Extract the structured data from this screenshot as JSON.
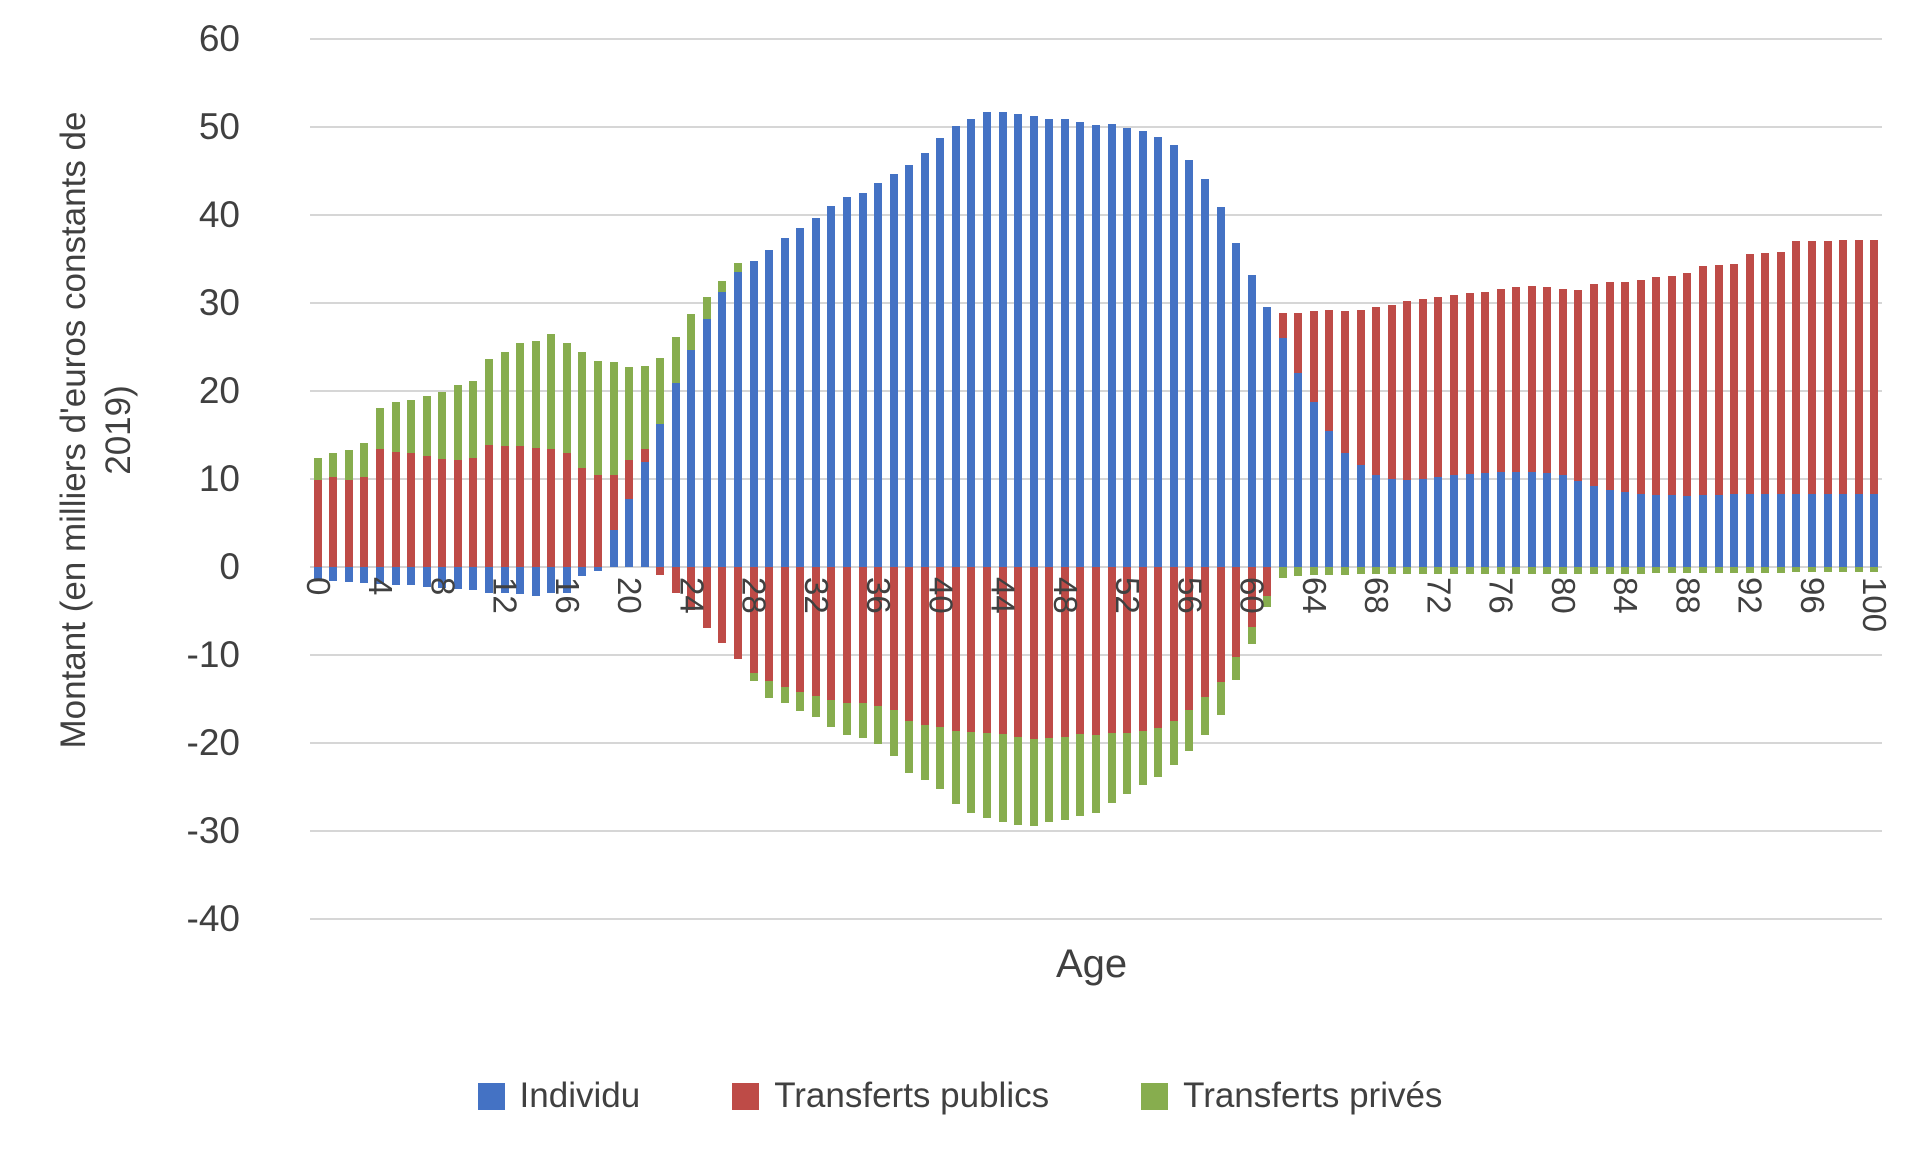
{
  "chart_data": {
    "type": "bar",
    "stacked": true,
    "orientation": "vertical",
    "xlabel": "Age",
    "ylabel": "Montant (en milliers d'euros constants de 2019)",
    "x_range": [
      0,
      100
    ],
    "x_tick_step": 4,
    "x_tick_labels": [
      "0",
      "4",
      "8",
      "12",
      "16",
      "20",
      "24",
      "28",
      "32",
      "36",
      "40",
      "44",
      "48",
      "52",
      "56",
      "60",
      "64",
      "68",
      "72",
      "76",
      "80",
      "84",
      "88",
      "92",
      "96",
      "100"
    ],
    "ylim": [
      -40,
      60
    ],
    "y_ticks": [
      60,
      50,
      40,
      30,
      20,
      10,
      0,
      -10,
      -20,
      -30,
      -40
    ],
    "grid": true,
    "gridline_color": "#d6d6d6",
    "legend_position": "bottom",
    "series": [
      {
        "name": "Individu",
        "color": "#4472C4",
        "values": [
          -1.4,
          -1.6,
          -1.7,
          -1.8,
          -1.9,
          -2.0,
          -2.1,
          -2.3,
          -2.4,
          -2.5,
          -2.6,
          -2.9,
          -3.0,
          -3.1,
          -3.3,
          -3.0,
          -3.0,
          -1.0,
          -0.4,
          4.2,
          7.7,
          11.9,
          16.3,
          20.9,
          24.7,
          28.2,
          31.3,
          33.5,
          34.8,
          36.0,
          37.4,
          38.5,
          39.7,
          41.0,
          42.1,
          42.5,
          43.6,
          44.7,
          45.7,
          47.0,
          48.7,
          50.1,
          50.9,
          51.7,
          51.7,
          51.5,
          51.2,
          50.9,
          50.9,
          50.6,
          50.2,
          50.3,
          49.9,
          49.5,
          48.9,
          48.0,
          46.2,
          44.1,
          40.9,
          36.8,
          33.2,
          29.5,
          26.0,
          22.1,
          18.7,
          15.5,
          13.0,
          11.6,
          10.4,
          10.0,
          9.9,
          10.0,
          10.2,
          10.4,
          10.6,
          10.7,
          10.8,
          10.8,
          10.8,
          10.7,
          10.5,
          9.8,
          9.2,
          8.8,
          8.5,
          8.3,
          8.2,
          8.2,
          8.1,
          8.2,
          8.2,
          8.3,
          8.3,
          8.3,
          8.3,
          8.3,
          8.3,
          8.3,
          8.3,
          8.3,
          8.3
        ]
      },
      {
        "name": "Transferts publics",
        "color": "#BE4B47",
        "values": [
          9.9,
          10.2,
          9.9,
          10.2,
          13.4,
          13.1,
          12.9,
          12.6,
          12.3,
          12.2,
          12.4,
          13.9,
          13.7,
          13.8,
          13.5,
          13.4,
          13.0,
          11.3,
          10.5,
          6.2,
          4.5,
          1.5,
          -0.9,
          -3.0,
          -4.9,
          -6.9,
          -8.6,
          -10.5,
          -12.1,
          -13.0,
          -13.6,
          -14.2,
          -14.7,
          -15.1,
          -15.4,
          -15.4,
          -15.8,
          -16.2,
          -17.5,
          -17.9,
          -18.2,
          -18.6,
          -18.8,
          -18.9,
          -19.0,
          -19.3,
          -19.5,
          -19.4,
          -19.3,
          -19.0,
          -19.1,
          -18.9,
          -18.9,
          -18.6,
          -18.3,
          -17.5,
          -16.2,
          -14.8,
          -13.1,
          -10.2,
          -6.8,
          -3.3,
          2.9,
          6.8,
          10.4,
          13.7,
          16.1,
          17.6,
          19.1,
          19.8,
          20.3,
          20.5,
          20.5,
          20.5,
          20.5,
          20.6,
          20.8,
          21.0,
          21.1,
          21.1,
          21.1,
          21.7,
          23.0,
          23.6,
          23.9,
          24.3,
          24.7,
          24.9,
          25.3,
          26.0,
          26.1,
          26.1,
          27.3,
          27.4,
          27.5,
          28.7,
          28.8,
          28.8,
          28.9,
          28.9,
          28.9
        ]
      },
      {
        "name": "Transferts privés",
        "color": "#87AD4E",
        "values": [
          2.5,
          2.7,
          3.4,
          3.9,
          4.7,
          5.7,
          6.1,
          6.8,
          7.6,
          8.5,
          8.7,
          9.7,
          10.7,
          11.7,
          12.2,
          13.1,
          12.5,
          13.1,
          12.9,
          12.9,
          10.5,
          9.4,
          7.4,
          5.2,
          4.0,
          2.5,
          1.2,
          1.1,
          -0.9,
          -1.9,
          -1.9,
          -2.2,
          -2.4,
          -3.1,
          -3.7,
          -4.0,
          -4.3,
          -5.3,
          -5.9,
          -6.3,
          -7.0,
          -8.3,
          -9.1,
          -9.6,
          -10.0,
          -10.0,
          -9.9,
          -9.6,
          -9.5,
          -9.3,
          -8.9,
          -7.9,
          -6.9,
          -6.2,
          -5.6,
          -5.0,
          -4.7,
          -4.3,
          -3.7,
          -2.6,
          -2.0,
          -1.3,
          -1.2,
          -1.0,
          -0.9,
          -0.9,
          -0.9,
          -0.8,
          -0.8,
          -0.8,
          -0.8,
          -0.8,
          -0.8,
          -0.8,
          -0.8,
          -0.8,
          -0.8,
          -0.8,
          -0.8,
          -0.8,
          -0.8,
          -0.8,
          -0.8,
          -0.8,
          -0.8,
          -0.8,
          -0.7,
          -0.7,
          -0.7,
          -0.7,
          -0.7,
          -0.7,
          -0.7,
          -0.7,
          -0.7,
          -0.6,
          -0.6,
          -0.6,
          -0.6,
          -0.6,
          -0.6,
          -0.6
        ]
      }
    ]
  }
}
